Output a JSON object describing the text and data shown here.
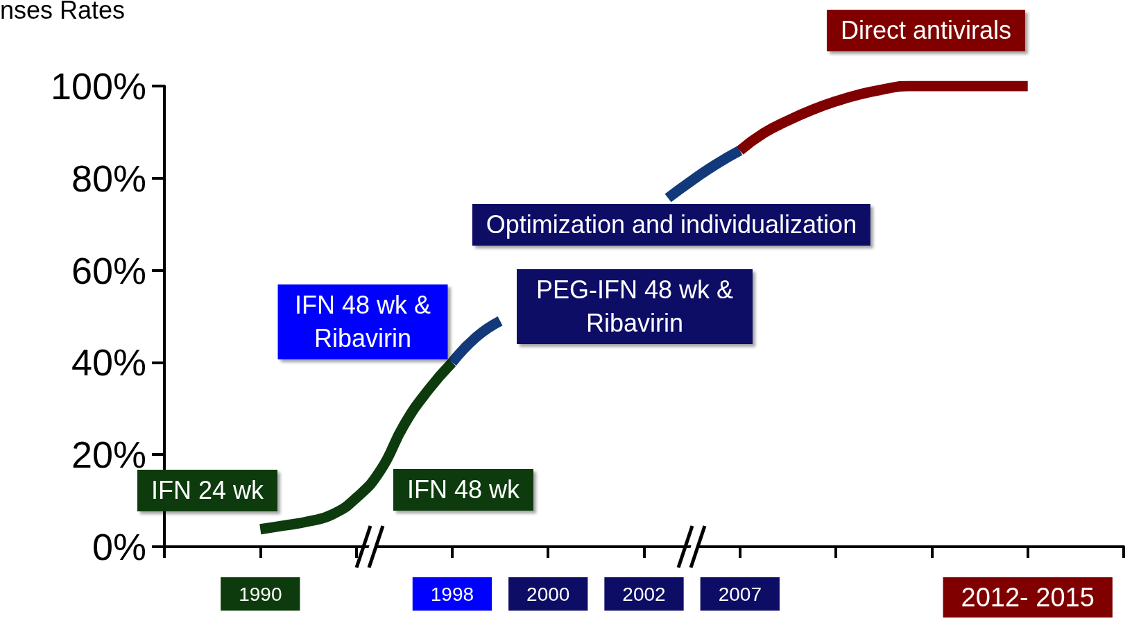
{
  "chart_data": {
    "type": "line",
    "ylabel": "nses Rates",
    "categories": [
      null,
      null,
      null,
      null,
      "1990",
      null,
      null,
      null,
      null,
      null,
      null,
      null,
      "1998",
      null,
      null,
      null,
      "2000",
      null,
      null,
      null,
      "2002",
      null,
      null,
      null,
      "2007",
      null,
      null,
      null,
      null,
      null,
      null,
      null,
      null,
      null,
      null,
      null,
      "2012- 2015",
      null,
      null,
      null,
      null
    ],
    "ylim": [
      0,
      100
    ],
    "yticks": [
      {
        "value": 0,
        "label": "0%"
      },
      {
        "value": 20,
        "label": "20%"
      },
      {
        "value": 40,
        "label": "40%"
      },
      {
        "value": 60,
        "label": "60%"
      },
      {
        "value": 80,
        "label": "80%"
      },
      {
        "value": 100,
        "label": "100%"
      }
    ],
    "series": [
      {
        "color": "#0d3b0d",
        "values": [
          null,
          null,
          null,
          null,
          3.8,
          4.6,
          5.5,
          7.0,
          10.6,
          16.5,
          26.5,
          34,
          40,
          null,
          null,
          null,
          null,
          null,
          null,
          null,
          null,
          null,
          null,
          null,
          null,
          null,
          null,
          null,
          null,
          null,
          null,
          null,
          null,
          null,
          null,
          null,
          null,
          null,
          null,
          null,
          null
        ]
      },
      {
        "color": "#123a7a",
        "values": [
          null,
          null,
          null,
          null,
          null,
          null,
          null,
          null,
          null,
          null,
          null,
          null,
          40,
          45.5,
          49,
          null,
          null,
          null,
          null,
          null,
          null,
          75.7,
          79.5,
          83,
          86,
          null,
          null,
          null,
          null,
          null,
          null,
          null,
          null,
          null,
          null,
          null,
          null,
          null,
          null,
          null,
          null
        ]
      },
      {
        "color": "#800000",
        "values": [
          null,
          null,
          null,
          null,
          null,
          null,
          null,
          null,
          null,
          null,
          null,
          null,
          null,
          null,
          null,
          null,
          null,
          null,
          null,
          null,
          null,
          null,
          null,
          null,
          86,
          89.8,
          92.5,
          94.8,
          96.7,
          98.2,
          99.3,
          100,
          100,
          100,
          100,
          100,
          100,
          null,
          null,
          null,
          null
        ]
      }
    ],
    "annotations": [
      "Direct antivirals",
      "Optimization and individualization",
      "IFN 48 wk & Ribavirin",
      "PEG-IFN 48 wk & Ribavirin",
      "IFN 24 wk",
      "IFN 48 wk"
    ],
    "grid": false,
    "marker": "none",
    "line_style": "solid"
  }
}
